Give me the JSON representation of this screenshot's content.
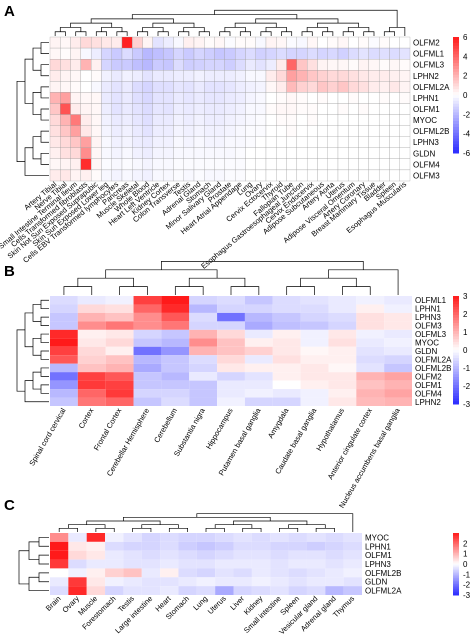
{
  "colors": {
    "low": "#2b2bff",
    "mid": "#ffffff",
    "high": "#ff1a1a",
    "grid": "#9a9a9a"
  },
  "panel_letters": {
    "A": "A",
    "B": "B",
    "C": "C"
  },
  "chart_data": [
    {
      "type": "heatmap",
      "panel": "A",
      "rows": [
        "OLFM2",
        "OLFML1",
        "OLFML3",
        "LPHN2",
        "OLFML2A",
        "LPHN1",
        "OLFM1",
        "MYOC",
        "OLFML2B",
        "LPHN3",
        "GLDN",
        "OLFM4",
        "OLFM3"
      ],
      "columns": [
        "Artery Tibial",
        "Nerve Tibial",
        "Small Intestine Terminal Ileum",
        "Cells Transformed fibroblasts",
        "Skin Not Sun Exposed Suprapubic",
        "Skin Sun Exposed Lower leg",
        "Cells EBV Transformed lymphocytes",
        "Pancreas",
        "Muscle Skeletal",
        "Whole Blood",
        "Heart Left Ventricle",
        "Kidney Cortex",
        "Colon Transverse",
        "Testis",
        "Adrenal Gland",
        "Stomach",
        "Minor Salivary Gland",
        "Prostate",
        "Heart Atrial Appendage",
        "Lung",
        "Ovary",
        "Cervix Ectocervix",
        "Thyroid",
        "Fallopian Tube",
        "Esophagus Gastroesophageal Junction",
        "Cervix Endocervix",
        "Adipose Subcutaneous",
        "Artery Aorta",
        "Uterus",
        "Adipose Visceral Omentum",
        "Artery Coronary",
        "Breast Mammary Tissue",
        "Bladder",
        "Spleen",
        "Esophagus Muscularis"
      ],
      "legend_ticks": [
        6,
        4,
        2,
        0,
        -2,
        -4,
        -6
      ],
      "range": [
        -6,
        6
      ],
      "values": [
        [
          0.3,
          0.2,
          0.5,
          1.0,
          0.8,
          0.6,
          0.5,
          5.8,
          1.2,
          0.3,
          -0.8,
          -0.5,
          -0.2,
          0.4,
          0.3,
          0.1,
          0.2,
          -0.1,
          0.1,
          0.1,
          -0.2,
          0.3,
          0.2,
          -0.1,
          -0.2,
          0.2,
          0.0,
          0.1,
          0.2,
          0.0,
          0.1,
          -0.1,
          0.1,
          0.0,
          0.0
        ],
        [
          0.2,
          0.1,
          0.3,
          -0.2,
          -0.5,
          -1.2,
          -1.5,
          -1.0,
          -1.5,
          -2.0,
          -1.8,
          -1.6,
          -1.2,
          -1.5,
          -1.2,
          -1.4,
          -1.6,
          -1.5,
          -1.2,
          -1.0,
          -1.3,
          -1.2,
          -1.0,
          -1.2,
          -1.2,
          -1.0,
          -1.2,
          -1.1,
          -1.3,
          -1.0,
          -0.8,
          -1.0,
          -0.9,
          -1.0,
          -0.8
        ],
        [
          1.0,
          0.8,
          0.5,
          2.0,
          0.4,
          -1.2,
          -1.5,
          -1.5,
          -1.8,
          -2.0,
          -1.5,
          -1.6,
          -1.0,
          -1.4,
          -1.3,
          -1.2,
          -1.2,
          -1.4,
          -1.0,
          -0.6,
          -0.8,
          -0.5,
          0.5,
          4.0,
          1.5,
          0.8,
          0.3,
          0.2,
          0.2,
          0.1,
          0.3,
          0.2,
          0.1,
          0.2,
          0.1
        ],
        [
          0.5,
          0.3,
          0.2,
          0.0,
          0.1,
          -0.4,
          -0.6,
          -0.4,
          -0.5,
          -0.8,
          -0.6,
          -0.6,
          -0.5,
          -0.5,
          -0.4,
          -0.5,
          -0.5,
          -0.5,
          -0.4,
          -0.2,
          -0.2,
          0.5,
          1.0,
          2.5,
          2.0,
          1.5,
          1.2,
          1.0,
          1.0,
          0.8,
          0.6,
          0.5,
          0.5,
          0.4,
          0.3
        ],
        [
          0.3,
          0.2,
          0.1,
          0.0,
          -0.2,
          -0.6,
          -0.8,
          -0.6,
          -1.0,
          -1.2,
          -0.9,
          -0.9,
          -0.7,
          -0.8,
          -0.6,
          -0.8,
          -0.8,
          -0.7,
          -0.5,
          -0.4,
          -0.3,
          0.2,
          0.5,
          1.8,
          1.2,
          1.0,
          1.5,
          1.2,
          1.5,
          1.0,
          0.8,
          0.5,
          0.4,
          0.6,
          0.3
        ],
        [
          2.0,
          2.5,
          0.3,
          0.2,
          0.2,
          -0.6,
          -0.8,
          -0.6,
          -0.9,
          -1.1,
          -0.8,
          -0.8,
          -0.6,
          -0.7,
          -0.6,
          -0.7,
          -0.7,
          -0.6,
          -0.5,
          -0.3,
          -0.2,
          0.0,
          0.1,
          0.2,
          0.1,
          0.0,
          0.1,
          0.0,
          0.0,
          0.1,
          0.0,
          0.0,
          0.1,
          0.0,
          0.1
        ],
        [
          1.5,
          4.5,
          0.5,
          0.3,
          0.2,
          -0.5,
          -0.8,
          -0.6,
          -0.8,
          -1.0,
          -0.7,
          -0.8,
          -0.5,
          -0.6,
          -0.5,
          -0.6,
          -0.6,
          -0.5,
          -0.4,
          -0.2,
          -0.2,
          0.1,
          0.2,
          0.2,
          0.1,
          0.1,
          0.0,
          0.0,
          0.1,
          0.0,
          0.1,
          0.0,
          0.0,
          0.0,
          0.0
        ],
        [
          1.0,
          2.0,
          3.5,
          0.5,
          0.2,
          -0.4,
          -0.6,
          -0.5,
          -0.7,
          -0.9,
          -0.6,
          -0.6,
          -0.4,
          -0.5,
          -0.4,
          -0.5,
          -0.5,
          -0.4,
          -0.3,
          -0.2,
          -0.1,
          0.0,
          0.1,
          0.1,
          0.0,
          0.1,
          0.0,
          0.0,
          0.0,
          0.0,
          0.0,
          0.0,
          0.0,
          0.0,
          0.0
        ],
        [
          0.8,
          1.5,
          2.5,
          0.6,
          0.2,
          -0.3,
          -0.5,
          -0.4,
          -0.6,
          -0.8,
          -0.5,
          -0.5,
          -0.3,
          -0.4,
          -0.3,
          -0.4,
          -0.4,
          -0.3,
          -0.2,
          -0.1,
          -0.1,
          0.0,
          0.0,
          0.1,
          0.0,
          0.0,
          0.0,
          0.0,
          0.0,
          0.0,
          0.0,
          0.0,
          0.0,
          0.0,
          0.0
        ],
        [
          0.6,
          1.0,
          1.5,
          2.5,
          0.3,
          -0.2,
          -0.4,
          -0.3,
          -0.5,
          -0.6,
          -0.4,
          -0.4,
          -0.2,
          -0.3,
          -0.2,
          -0.3,
          -0.3,
          -0.2,
          -0.2,
          -0.1,
          0.0,
          0.0,
          0.0,
          0.0,
          0.0,
          0.0,
          0.0,
          0.0,
          0.0,
          0.0,
          0.0,
          0.0,
          0.0,
          0.0,
          0.0
        ],
        [
          0.4,
          0.8,
          1.0,
          3.0,
          0.2,
          -0.2,
          -0.3,
          -0.2,
          -0.4,
          -0.5,
          -0.3,
          -0.3,
          -0.2,
          -0.2,
          -0.2,
          -0.2,
          -0.2,
          -0.2,
          -0.1,
          0.0,
          0.0,
          0.0,
          0.0,
          0.0,
          0.0,
          0.0,
          0.0,
          0.0,
          0.0,
          0.0,
          0.0,
          0.0,
          0.0,
          0.0,
          0.0
        ],
        [
          0.2,
          0.3,
          0.4,
          5.5,
          0.2,
          -0.1,
          -0.2,
          -0.1,
          -0.2,
          -0.3,
          -0.2,
          -0.2,
          -0.1,
          -0.1,
          -0.1,
          -0.1,
          -0.1,
          -0.1,
          -0.1,
          0.0,
          0.0,
          0.0,
          0.0,
          0.0,
          0.0,
          0.0,
          0.0,
          0.0,
          0.0,
          0.0,
          0.0,
          0.0,
          0.0,
          0.0,
          0.0
        ],
        [
          0.5,
          0.6,
          0.3,
          0.4,
          0.1,
          -0.2,
          -0.3,
          -0.2,
          -0.3,
          -0.4,
          -0.2,
          -0.2,
          -0.1,
          -0.2,
          -0.1,
          -0.2,
          -0.2,
          -0.1,
          -0.1,
          0.0,
          0.0,
          0.0,
          0.0,
          0.0,
          0.0,
          0.0,
          0.0,
          0.0,
          0.0,
          0.0,
          0.0,
          0.0,
          0.0,
          0.0,
          0.0
        ]
      ]
    },
    {
      "type": "heatmap",
      "panel": "B",
      "rows": [
        "OLFML1",
        "LPHN1",
        "LPHN3",
        "OLFM3",
        "OLFML3",
        "MYOC",
        "GLDN",
        "OLFML2A",
        "OLFML2B",
        "OLFM2",
        "OLFM1",
        "OLFM4",
        "LPHN2"
      ],
      "columns": [
        "Spinal cord cervical",
        "Cortex",
        "Frontal Cortex",
        "Cerebellar Hemisphere",
        "Cerebellum",
        "Substantia nigra",
        "Hippocampus",
        "Putamen basal ganglia",
        "Amygdala",
        "Caudate basal ganglia",
        "Hypothalamus",
        "Anterior cingulate cortex",
        "Nucleus accumbens basal ganglia"
      ],
      "legend_ticks": [
        3,
        2,
        1,
        0,
        -1,
        -2,
        -3
      ],
      "range": [
        -3,
        3
      ],
      "values": [
        [
          -0.5,
          -0.3,
          -0.2,
          2.5,
          3.0,
          -0.6,
          -0.5,
          -0.8,
          -0.5,
          -0.4,
          -0.3,
          -0.2,
          -0.3
        ],
        [
          -0.6,
          0.5,
          0.4,
          2.0,
          2.8,
          -1.0,
          -0.6,
          -0.6,
          -0.5,
          -0.5,
          -0.3,
          0.2,
          -0.2
        ],
        [
          -0.8,
          1.0,
          0.8,
          1.5,
          2.2,
          -0.5,
          -2.0,
          -1.0,
          -0.8,
          -0.6,
          -0.5,
          0.4,
          0.3
        ],
        [
          -0.8,
          1.5,
          1.8,
          1.5,
          1.8,
          -0.6,
          -0.6,
          -1.2,
          -0.9,
          -0.8,
          -0.6,
          0.4,
          0.3
        ],
        [
          2.8,
          0.2,
          0.3,
          -0.6,
          -0.8,
          1.0,
          0.5,
          -0.3,
          0.2,
          -0.2,
          0.3,
          -0.2,
          -0.3
        ],
        [
          3.0,
          0.3,
          0.5,
          -0.8,
          -1.0,
          1.5,
          0.8,
          0.2,
          0.3,
          -0.2,
          0.4,
          -0.3,
          -0.2
        ],
        [
          2.5,
          0.5,
          0.2,
          -2.0,
          -1.5,
          1.0,
          0.8,
          0.6,
          0.3,
          0.1,
          0.2,
          -0.4,
          -0.3
        ],
        [
          2.2,
          0.6,
          0.8,
          -1.0,
          -0.8,
          -0.5,
          0.5,
          -0.3,
          0.4,
          0.2,
          0.2,
          -0.5,
          -0.6
        ],
        [
          -1.0,
          0.8,
          1.0,
          -1.2,
          -0.8,
          -0.6,
          0.3,
          0.2,
          0.2,
          0.3,
          0.1,
          -0.4,
          -0.8
        ],
        [
          -2.0,
          2.5,
          2.2,
          -0.8,
          -1.0,
          -0.3,
          -0.6,
          -0.4,
          0.2,
          0.3,
          0.3,
          1.0,
          1.2
        ],
        [
          -1.5,
          2.6,
          2.5,
          -0.8,
          -0.8,
          -0.8,
          -0.3,
          -0.3,
          0.0,
          0.2,
          0.3,
          0.8,
          1.0
        ],
        [
          -1.0,
          2.0,
          2.6,
          -0.6,
          -0.6,
          -0.8,
          -0.3,
          -0.2,
          -0.3,
          -0.2,
          0.2,
          1.0,
          1.2
        ],
        [
          -0.8,
          1.8,
          2.0,
          -0.8,
          -0.5,
          -0.8,
          -0.2,
          -0.6,
          -0.6,
          -0.2,
          0.3,
          0.9,
          1.0
        ]
      ]
    },
    {
      "type": "heatmap",
      "panel": "C",
      "rows": [
        "MYOC",
        "LPHN1",
        "OLFM1",
        "LPHN3",
        "OLFML2B",
        "GLDN",
        "OLFML2A"
      ],
      "columns": [
        "Brain",
        "Ovary",
        "Muscle",
        "Forestomach",
        "Testis",
        "Large intestine",
        "Heart",
        "Stomach",
        "Lung",
        "Uterus",
        "Liver",
        "Kidney",
        "Small intestine",
        "Spleen",
        "Vesicular gland",
        "Adrenal gland",
        "Thymus"
      ],
      "legend_ticks": [
        2,
        1,
        0,
        -1,
        -2,
        -3
      ],
      "range": [
        -3,
        3
      ],
      "values": [
        [
          1.5,
          -0.3,
          2.8,
          -0.2,
          -0.4,
          -0.6,
          -0.5,
          -0.6,
          -0.6,
          -0.5,
          -0.4,
          -0.5,
          -0.4,
          -0.5,
          -0.4,
          -0.5,
          -0.4
        ],
        [
          3.0,
          0.3,
          0.2,
          -0.5,
          -0.6,
          -0.6,
          -0.5,
          -0.7,
          -0.8,
          -0.7,
          -0.5,
          -0.5,
          -0.6,
          -0.6,
          -0.7,
          -0.6,
          -0.5
        ],
        [
          3.0,
          0.5,
          0.3,
          -0.3,
          -0.4,
          -0.5,
          -0.4,
          -0.5,
          -0.6,
          -0.5,
          -0.4,
          -0.4,
          -0.5,
          -0.4,
          -0.4,
          -0.5,
          -0.4
        ],
        [
          2.6,
          -0.5,
          -0.3,
          -0.3,
          -0.4,
          -0.4,
          -0.3,
          -0.4,
          -0.4,
          -0.3,
          -0.3,
          -0.3,
          -0.4,
          -0.3,
          -0.3,
          -0.4,
          -0.3
        ],
        [
          0.0,
          -0.2,
          0.2,
          0.6,
          0.8,
          -0.3,
          0.2,
          -0.5,
          -0.6,
          -0.4,
          -0.5,
          -0.3,
          -0.4,
          -0.5,
          -0.4,
          -0.3,
          -0.2
        ],
        [
          -0.3,
          2.6,
          0.3,
          -0.2,
          -0.3,
          -0.4,
          -0.4,
          -0.3,
          -0.2,
          -0.3,
          -0.3,
          -0.2,
          -0.3,
          -0.4,
          -0.3,
          -0.3,
          -0.4
        ],
        [
          -0.5,
          2.8,
          0.5,
          -0.6,
          -0.4,
          -0.4,
          -0.3,
          -0.6,
          -0.5,
          -1.2,
          -0.6,
          -0.5,
          -0.4,
          -0.6,
          -0.5,
          -1.0,
          -0.8
        ]
      ]
    }
  ]
}
